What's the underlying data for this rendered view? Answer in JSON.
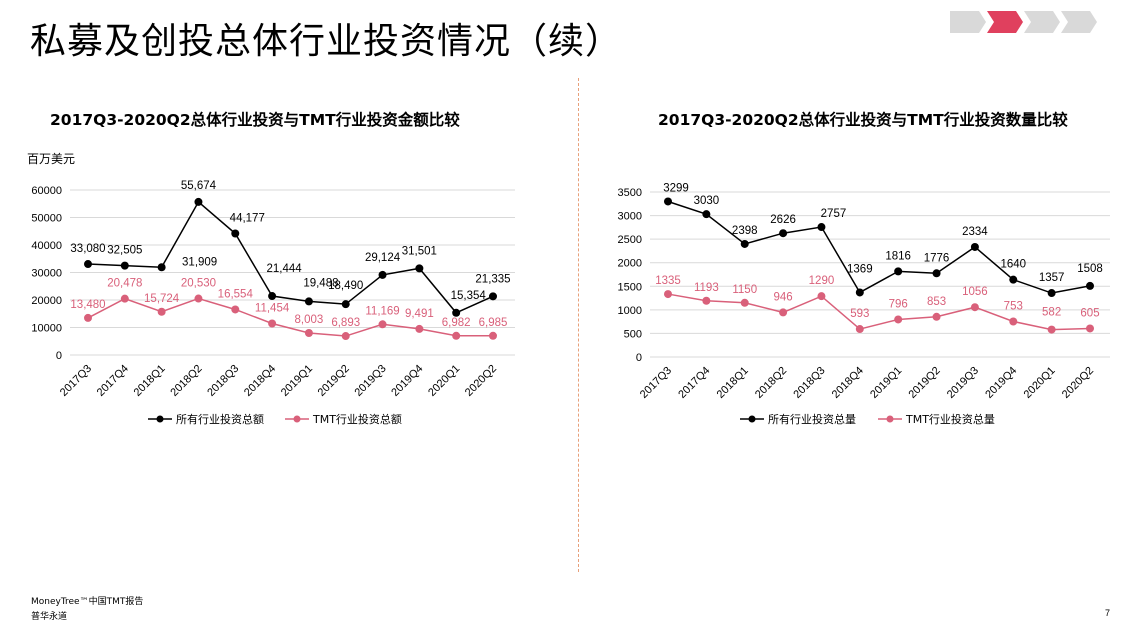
{
  "page": {
    "title": "私募及创投总体行业投资情况（续）",
    "footer_source": "MoneyTree™中国TMT报告",
    "footer_company": "普华永道",
    "page_number": "7",
    "progress_steps": 4,
    "progress_active_step": 2,
    "colors": {
      "accent": "#e0405e",
      "inactive_step": "#d9d9d9",
      "divider": "#e8a07a"
    }
  },
  "chart_data": [
    {
      "type": "line",
      "title": "2017Q3-2020Q2总体行业投资与TMT行业投资金额比较",
      "ylabel": "百万美元",
      "categories": [
        "2017Q3",
        "2017Q4",
        "2018Q1",
        "2018Q2",
        "2018Q3",
        "2018Q4",
        "2019Q1",
        "2019Q2",
        "2019Q3",
        "2019Q4",
        "2020Q1",
        "2020Q2"
      ],
      "ylim": [
        0,
        60000
      ],
      "yticks": [
        "0",
        "10000",
        "20000",
        "30000",
        "40000",
        "50000",
        "60000"
      ],
      "grid": true,
      "legend": "bottom",
      "series": [
        {
          "name": "所有行业投资总额",
          "color": "#000000",
          "values": [
            33080,
            32505,
            31909,
            55674,
            44177,
            21444,
            19488,
            18490,
            29124,
            31501,
            15354,
            21335
          ],
          "labels": [
            "33,080",
            "32,505",
            "31,909",
            "55,674",
            "44,177",
            "21,444",
            "19,488",
            "18,490",
            "29,124",
            "31,501",
            "15,354",
            "21,335"
          ]
        },
        {
          "name": "TMT行业投资总额",
          "color": "#d9607a",
          "values": [
            13480,
            20478,
            15724,
            20530,
            16554,
            11454,
            8003,
            6893,
            11169,
            9491,
            6982,
            6985
          ],
          "labels": [
            "13,480",
            "20,478",
            "15,724",
            "20,530",
            "16,554",
            "11,454",
            "8,003",
            "6,893",
            "11,169",
            "9,491",
            "6,982",
            "6,985"
          ]
        }
      ]
    },
    {
      "type": "line",
      "title": "2017Q3-2020Q2总体行业投资与TMT行业投资数量比较",
      "categories": [
        "2017Q3",
        "2017Q4",
        "2018Q1",
        "2018Q2",
        "2018Q3",
        "2018Q4",
        "2019Q1",
        "2019Q2",
        "2019Q3",
        "2019Q4",
        "2020Q1",
        "2020Q2"
      ],
      "ylim": [
        0,
        3500
      ],
      "yticks": [
        "0",
        "500",
        "1000",
        "1500",
        "2000",
        "2500",
        "3000",
        "3500"
      ],
      "grid": true,
      "legend": "bottom",
      "series": [
        {
          "name": "所有行业投资总量",
          "color": "#000000",
          "values": [
            3299,
            3030,
            2398,
            2626,
            2757,
            1369,
            1816,
            1776,
            2334,
            1640,
            1357,
            1508
          ],
          "labels": [
            "3299",
            "3030",
            "2398",
            "2626",
            "2757",
            "1369",
            "1816",
            "1776",
            "2334",
            "1640",
            "1357",
            "1508"
          ]
        },
        {
          "name": "TMT行业投资总量",
          "color": "#d9607a",
          "values": [
            1335,
            1193,
            1150,
            946,
            1290,
            593,
            796,
            853,
            1056,
            753,
            582,
            605
          ],
          "labels": [
            "1335",
            "1193",
            "1150",
            "946",
            "1290",
            "593",
            "796",
            "853",
            "1056",
            "753",
            "582",
            "605"
          ]
        }
      ]
    }
  ]
}
